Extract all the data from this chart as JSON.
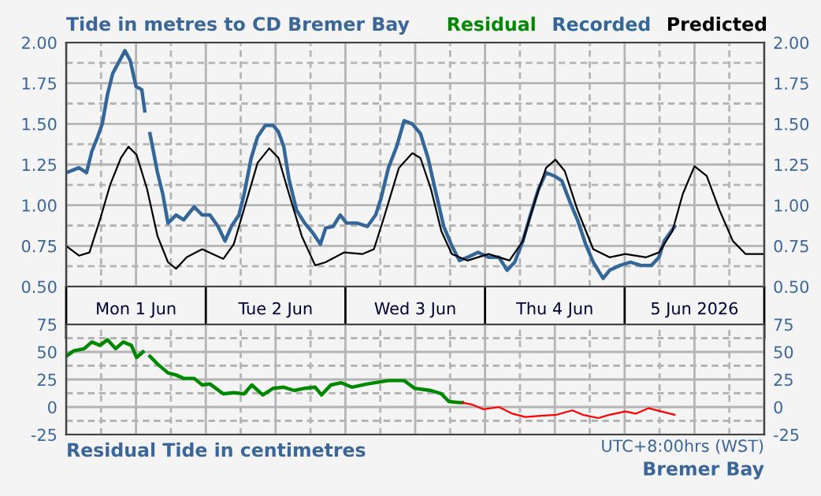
{
  "chart_data": [
    {
      "type": "line",
      "title": "Tide in metres to CD Bremer Bay",
      "legend": "top right",
      "grid": true,
      "tick_labels": "xy",
      "xlim": [
        "2026-06-01T00:00",
        "2026-06-06T00:00"
      ],
      "xticks": [
        {
          "value": "2026-06-01T00:00",
          "label": null
        },
        {
          "value": "2026-06-01T06:00",
          "label": null
        },
        {
          "value": "2026-06-01T12:00",
          "label": "Mon 1 Jun"
        },
        {
          "value": "2026-06-01T18:00",
          "label": null
        },
        {
          "value": "2026-06-02T00:00",
          "label": null
        },
        {
          "value": "2026-06-02T06:00",
          "label": null
        },
        {
          "value": "2026-06-02T12:00",
          "label": "Tue 2 Jun"
        },
        {
          "value": "2026-06-02T18:00",
          "label": null
        },
        {
          "value": "2026-06-03T00:00",
          "label": null
        },
        {
          "value": "2026-06-03T06:00",
          "label": null
        },
        {
          "value": "2026-06-03T12:00",
          "label": "Wed 3 Jun"
        },
        {
          "value": "2026-06-03T18:00",
          "label": null
        },
        {
          "value": "2026-06-04T00:00",
          "label": null
        },
        {
          "value": "2026-06-04T06:00",
          "label": null
        },
        {
          "value": "2026-06-04T12:00",
          "label": "Thu 4 Jun"
        },
        {
          "value": "2026-06-04T18:00",
          "label": null
        },
        {
          "value": "2026-06-05T00:00",
          "label": null
        },
        {
          "value": "2026-06-05T06:00",
          "label": null
        },
        {
          "value": "2026-06-05T12:00",
          "label": "5 Jun 2026"
        },
        {
          "value": "2026-06-05T18:00",
          "label": null
        },
        {
          "value": "2026-06-06T00:00",
          "label": null
        }
      ],
      "ylim": [
        0.5,
        2.0
      ],
      "yticks": [
        {
          "value": 0.5,
          "label": "0.50"
        },
        {
          "value": 0.625,
          "label": null
        },
        {
          "value": 0.75,
          "label": "0.75"
        },
        {
          "value": 0.875,
          "label": null
        },
        {
          "value": 1.0,
          "label": "1.00"
        },
        {
          "value": 1.125,
          "label": null
        },
        {
          "value": 1.25,
          "label": "1.25"
        },
        {
          "value": 1.375,
          "label": null
        },
        {
          "value": 1.5,
          "label": "1.50"
        },
        {
          "value": 1.625,
          "label": null
        },
        {
          "value": 1.75,
          "label": "1.75"
        },
        {
          "value": 1.875,
          "label": null
        },
        {
          "value": 2.0,
          "label": "2.00"
        }
      ],
      "y2lim": [
        0.5,
        2.0
      ],
      "y2ticks": [
        {
          "value": 0.5,
          "label": "0.50"
        },
        {
          "value": 0.75,
          "label": "0.75"
        },
        {
          "value": 1.0,
          "label": "1.00"
        },
        {
          "value": 1.25,
          "label": "1.25"
        },
        {
          "value": 1.5,
          "label": "1.50"
        },
        {
          "value": 1.75,
          "label": "1.75"
        },
        {
          "value": 2.0,
          "label": "2.00"
        }
      ],
      "series": [
        {
          "name": "Recorded",
          "color": "#336699",
          "x": [
            "2026-06-01T00:00",
            "2026-06-01T02:12",
            "2026-06-01T03:30",
            "2026-06-01T04:24",
            "2026-06-01T05:18",
            "2026-06-01T06:12",
            "2026-06-01T07:06",
            "2026-06-01T08:00",
            "2026-06-01T08:54",
            "2026-06-01T10:06",
            "2026-06-01T11:00",
            "2026-06-01T12:00",
            "2026-06-01T13:00",
            "2026-06-01T13:30",
            "2026-06-01T14:00",
            "2026-06-01T14:24",
            "2026-06-01T15:00",
            "2026-06-01T15:42",
            "2026-06-01T16:36",
            "2026-06-01T17:30",
            "2026-06-01T18:54",
            "2026-06-01T20:12",
            "2026-06-01T22:00",
            "2026-06-01T23:24",
            "2026-06-02T00:42",
            "2026-06-02T02:06",
            "2026-06-02T03:18",
            "2026-06-02T04:24",
            "2026-06-02T05:42",
            "2026-06-02T06:36",
            "2026-06-02T07:48",
            "2026-06-02T08:54",
            "2026-06-02T10:12",
            "2026-06-02T11:36",
            "2026-06-02T12:30",
            "2026-06-02T13:24",
            "2026-06-02T14:18",
            "2026-06-02T15:36",
            "2026-06-02T17:00",
            "2026-06-02T18:24",
            "2026-06-02T19:42",
            "2026-06-02T20:36",
            "2026-06-02T21:54",
            "2026-06-02T23:06",
            "2026-06-03T00:12",
            "2026-06-03T02:00",
            "2026-06-03T03:48",
            "2026-06-03T05:12",
            "2026-06-03T06:06",
            "2026-06-03T07:24",
            "2026-06-03T08:48",
            "2026-06-03T10:06",
            "2026-06-03T11:30",
            "2026-06-03T12:54",
            "2026-06-03T14:12",
            "2026-06-03T15:36",
            "2026-06-03T16:54",
            "2026-06-03T18:18",
            "2026-06-03T19:36",
            "2026-06-03T21:00",
            "2026-06-03T22:48",
            "2026-06-04T00:36",
            "2026-06-04T02:24",
            "2026-06-04T03:48",
            "2026-06-04T05:06",
            "2026-06-04T06:30",
            "2026-06-04T07:48",
            "2026-06-04T09:12",
            "2026-06-04T10:30",
            "2026-06-04T11:54",
            "2026-06-04T13:12",
            "2026-06-04T14:36",
            "2026-06-04T15:54",
            "2026-06-04T17:18",
            "2026-06-04T18:36",
            "2026-06-04T20:18",
            "2026-06-04T21:24",
            "2026-06-04T23:12",
            "2026-06-05T01:00",
            "2026-06-05T02:48",
            "2026-06-05T04:36",
            "2026-06-05T05:54",
            "2026-06-05T06:48",
            "2026-06-05T08:36"
          ],
          "values": [
            1.2,
            1.23,
            1.2,
            1.33,
            1.41,
            1.5,
            1.68,
            1.81,
            1.87,
            1.95,
            1.89,
            1.73,
            1.71,
            1.58,
            null,
            1.44,
            1.33,
            1.2,
            1.07,
            0.89,
            0.94,
            0.91,
            0.99,
            0.94,
            0.94,
            0.87,
            0.78,
            0.87,
            0.94,
            1.07,
            1.29,
            1.42,
            1.49,
            1.49,
            1.45,
            1.36,
            1.16,
            0.97,
            0.89,
            0.83,
            0.76,
            0.86,
            0.87,
            0.94,
            0.89,
            0.89,
            0.87,
            0.94,
            1.04,
            1.23,
            1.36,
            1.52,
            1.5,
            1.44,
            1.29,
            1.07,
            0.87,
            0.75,
            0.66,
            0.68,
            0.71,
            0.68,
            0.68,
            0.6,
            0.65,
            0.78,
            0.94,
            1.1,
            1.2,
            1.18,
            1.15,
            1.02,
            0.91,
            0.76,
            0.65,
            0.55,
            0.6,
            0.63,
            0.65,
            0.63,
            0.63,
            0.68,
            0.78,
            0.87
          ]
        },
        {
          "name": "Predicted",
          "color": "#000000",
          "x": [
            "2026-06-01T00:00",
            "2026-06-01T02:12",
            "2026-06-01T04:00",
            "2026-06-01T05:48",
            "2026-06-01T07:36",
            "2026-06-01T09:24",
            "2026-06-01T10:42",
            "2026-06-01T12:06",
            "2026-06-01T13:54",
            "2026-06-01T15:42",
            "2026-06-01T17:30",
            "2026-06-01T18:54",
            "2026-06-01T20:42",
            "2026-06-01T23:24",
            "2026-06-02T01:12",
            "2026-06-02T03:00",
            "2026-06-02T04:48",
            "2026-06-02T07:06",
            "2026-06-02T08:54",
            "2026-06-02T10:54",
            "2026-06-02T12:30",
            "2026-06-02T14:18",
            "2026-06-02T16:30",
            "2026-06-02T18:48",
            "2026-06-02T20:36",
            "2026-06-02T23:48",
            "2026-06-03T02:54",
            "2026-06-03T04:54",
            "2026-06-03T06:30",
            "2026-06-03T09:12",
            "2026-06-03T11:30",
            "2026-06-03T12:54",
            "2026-06-03T14:42",
            "2026-06-03T16:30",
            "2026-06-03T18:18",
            "2026-06-03T21:00",
            "2026-06-04T00:36",
            "2026-06-04T04:12",
            "2026-06-04T06:30",
            "2026-06-04T08:42",
            "2026-06-04T10:30",
            "2026-06-04T12:06",
            "2026-06-04T13:42",
            "2026-06-04T15:54",
            "2026-06-04T18:36",
            "2026-06-04T21:24",
            "2026-06-05T00:06",
            "2026-06-05T03:42",
            "2026-06-05T05:54",
            "2026-06-05T08:12",
            "2026-06-05T10:00",
            "2026-06-05T12:00",
            "2026-06-05T14:06",
            "2026-06-05T16:18",
            "2026-06-05T18:36",
            "2026-06-05T20:48",
            "2026-06-06T00:00"
          ],
          "values": [
            0.75,
            0.69,
            0.71,
            0.91,
            1.13,
            1.29,
            1.36,
            1.31,
            1.1,
            0.81,
            0.65,
            0.61,
            0.68,
            0.73,
            0.7,
            0.67,
            0.76,
            1.04,
            1.26,
            1.35,
            1.29,
            1.07,
            0.81,
            0.63,
            0.65,
            0.71,
            0.7,
            0.73,
            0.91,
            1.23,
            1.32,
            1.29,
            1.1,
            0.84,
            0.7,
            0.66,
            0.7,
            0.66,
            0.78,
            1.04,
            1.23,
            1.28,
            1.21,
            0.97,
            0.73,
            0.68,
            0.7,
            0.68,
            0.71,
            0.84,
            1.07,
            1.24,
            1.18,
            0.97,
            0.78,
            0.7,
            0.7
          ]
        }
      ]
    },
    {
      "type": "line",
      "title": "Residual Tide in centimetres",
      "legend": "top right",
      "grid": true,
      "tick_labels": "y",
      "annotations": [
        "UTC+8:00hrs (WST)",
        "Bremer Bay"
      ],
      "xlim": [
        "2026-06-01T00:00",
        "2026-06-06T00:00"
      ],
      "xticks": [
        {
          "value": "2026-06-01T00:00",
          "label": null
        },
        {
          "value": "2026-06-01T06:00",
          "label": null
        },
        {
          "value": "2026-06-01T12:00",
          "label": null
        },
        {
          "value": "2026-06-01T18:00",
          "label": null
        },
        {
          "value": "2026-06-02T00:00",
          "label": null
        },
        {
          "value": "2026-06-02T06:00",
          "label": null
        },
        {
          "value": "2026-06-02T12:00",
          "label": null
        },
        {
          "value": "2026-06-02T18:00",
          "label": null
        },
        {
          "value": "2026-06-03T00:00",
          "label": null
        },
        {
          "value": "2026-06-03T06:00",
          "label": null
        },
        {
          "value": "2026-06-03T12:00",
          "label": null
        },
        {
          "value": "2026-06-03T18:00",
          "label": null
        },
        {
          "value": "2026-06-04T00:00",
          "label": null
        },
        {
          "value": "2026-06-04T06:00",
          "label": null
        },
        {
          "value": "2026-06-04T12:00",
          "label": null
        },
        {
          "value": "2026-06-04T18:00",
          "label": null
        },
        {
          "value": "2026-06-05T00:00",
          "label": null
        },
        {
          "value": "2026-06-05T06:00",
          "label": null
        },
        {
          "value": "2026-06-05T12:00",
          "label": null
        },
        {
          "value": "2026-06-05T18:00",
          "label": null
        },
        {
          "value": "2026-06-06T00:00",
          "label": null
        }
      ],
      "ylim": [
        -25,
        75
      ],
      "yticks": [
        -25,
        {
          "value": -12.5,
          "label": null
        },
        0,
        {
          "value": 12.5,
          "label": null
        },
        25,
        {
          "value": 37.5,
          "label": null
        },
        50,
        {
          "value": 62.5,
          "label": null
        },
        75
      ],
      "y2lim": [
        -25,
        75
      ],
      "y2ticks": [
        -25,
        0,
        25,
        50,
        75
      ],
      "series": [
        {
          "name": "Residual",
          "color": "#008800",
          "x": [
            "2026-06-01T00:00",
            "2026-06-01T01:18",
            "2026-06-01T03:06",
            "2026-06-01T04:24",
            "2026-06-01T05:48",
            "2026-06-01T07:06",
            "2026-06-01T08:30",
            "2026-06-01T09:48",
            "2026-06-01T11:12",
            "2026-06-01T12:06",
            "2026-06-01T13:12",
            "2026-06-01T13:48",
            "2026-06-01T14:24",
            "2026-06-01T15:42",
            "2026-06-01T17:30",
            "2026-06-01T18:54",
            "2026-06-01T20:12",
            "2026-06-01T22:00",
            "2026-06-01T23:24",
            "2026-06-02T00:42",
            "2026-06-02T03:00",
            "2026-06-02T04:48",
            "2026-06-02T06:36",
            "2026-06-02T07:54",
            "2026-06-02T09:48",
            "2026-06-02T11:36",
            "2026-06-02T13:24",
            "2026-06-02T15:12",
            "2026-06-02T17:00",
            "2026-06-02T18:48",
            "2026-06-02T19:54",
            "2026-06-02T21:30",
            "2026-06-02T23:18",
            "2026-06-03T01:06",
            "2026-06-03T03:48",
            "2026-06-03T07:24",
            "2026-06-03T10:06",
            "2026-06-03T11:54",
            "2026-06-03T14:42",
            "2026-06-03T16:30",
            "2026-06-03T17:48",
            "2026-06-03T19:36",
            "2026-06-03T20:06"
          ],
          "values": [
            46,
            51,
            53,
            59,
            56,
            61,
            53,
            59,
            56,
            45,
            50,
            null,
            46,
            39,
            31,
            29,
            26,
            26,
            20,
            21,
            12,
            13,
            12,
            20,
            11,
            17,
            18,
            15,
            17,
            18,
            11,
            20,
            22,
            18,
            21,
            24,
            24,
            17,
            15,
            12,
            5,
            4,
            4
          ]
        },
        {
          "color": "#ff0000",
          "x": [
            "2026-06-03T20:06",
            "2026-06-03T21:54",
            "2026-06-03T23:42",
            "2026-06-04T02:24",
            "2026-06-04T04:42",
            "2026-06-04T06:54",
            "2026-06-04T09:36",
            "2026-06-04T12:18",
            "2026-06-04T15:00",
            "2026-06-04T16:48",
            "2026-06-04T19:30",
            "2026-06-04T21:24",
            "2026-06-05T00:06",
            "2026-06-05T01:54",
            "2026-06-05T04:06",
            "2026-06-05T06:18",
            "2026-06-05T08:36"
          ],
          "values": [
            4,
            2,
            -2,
            0,
            -6,
            -9,
            -8,
            -7,
            -3,
            -7,
            -10,
            -7,
            -4,
            -6,
            -1,
            -4,
            -7
          ]
        }
      ]
    }
  ]
}
